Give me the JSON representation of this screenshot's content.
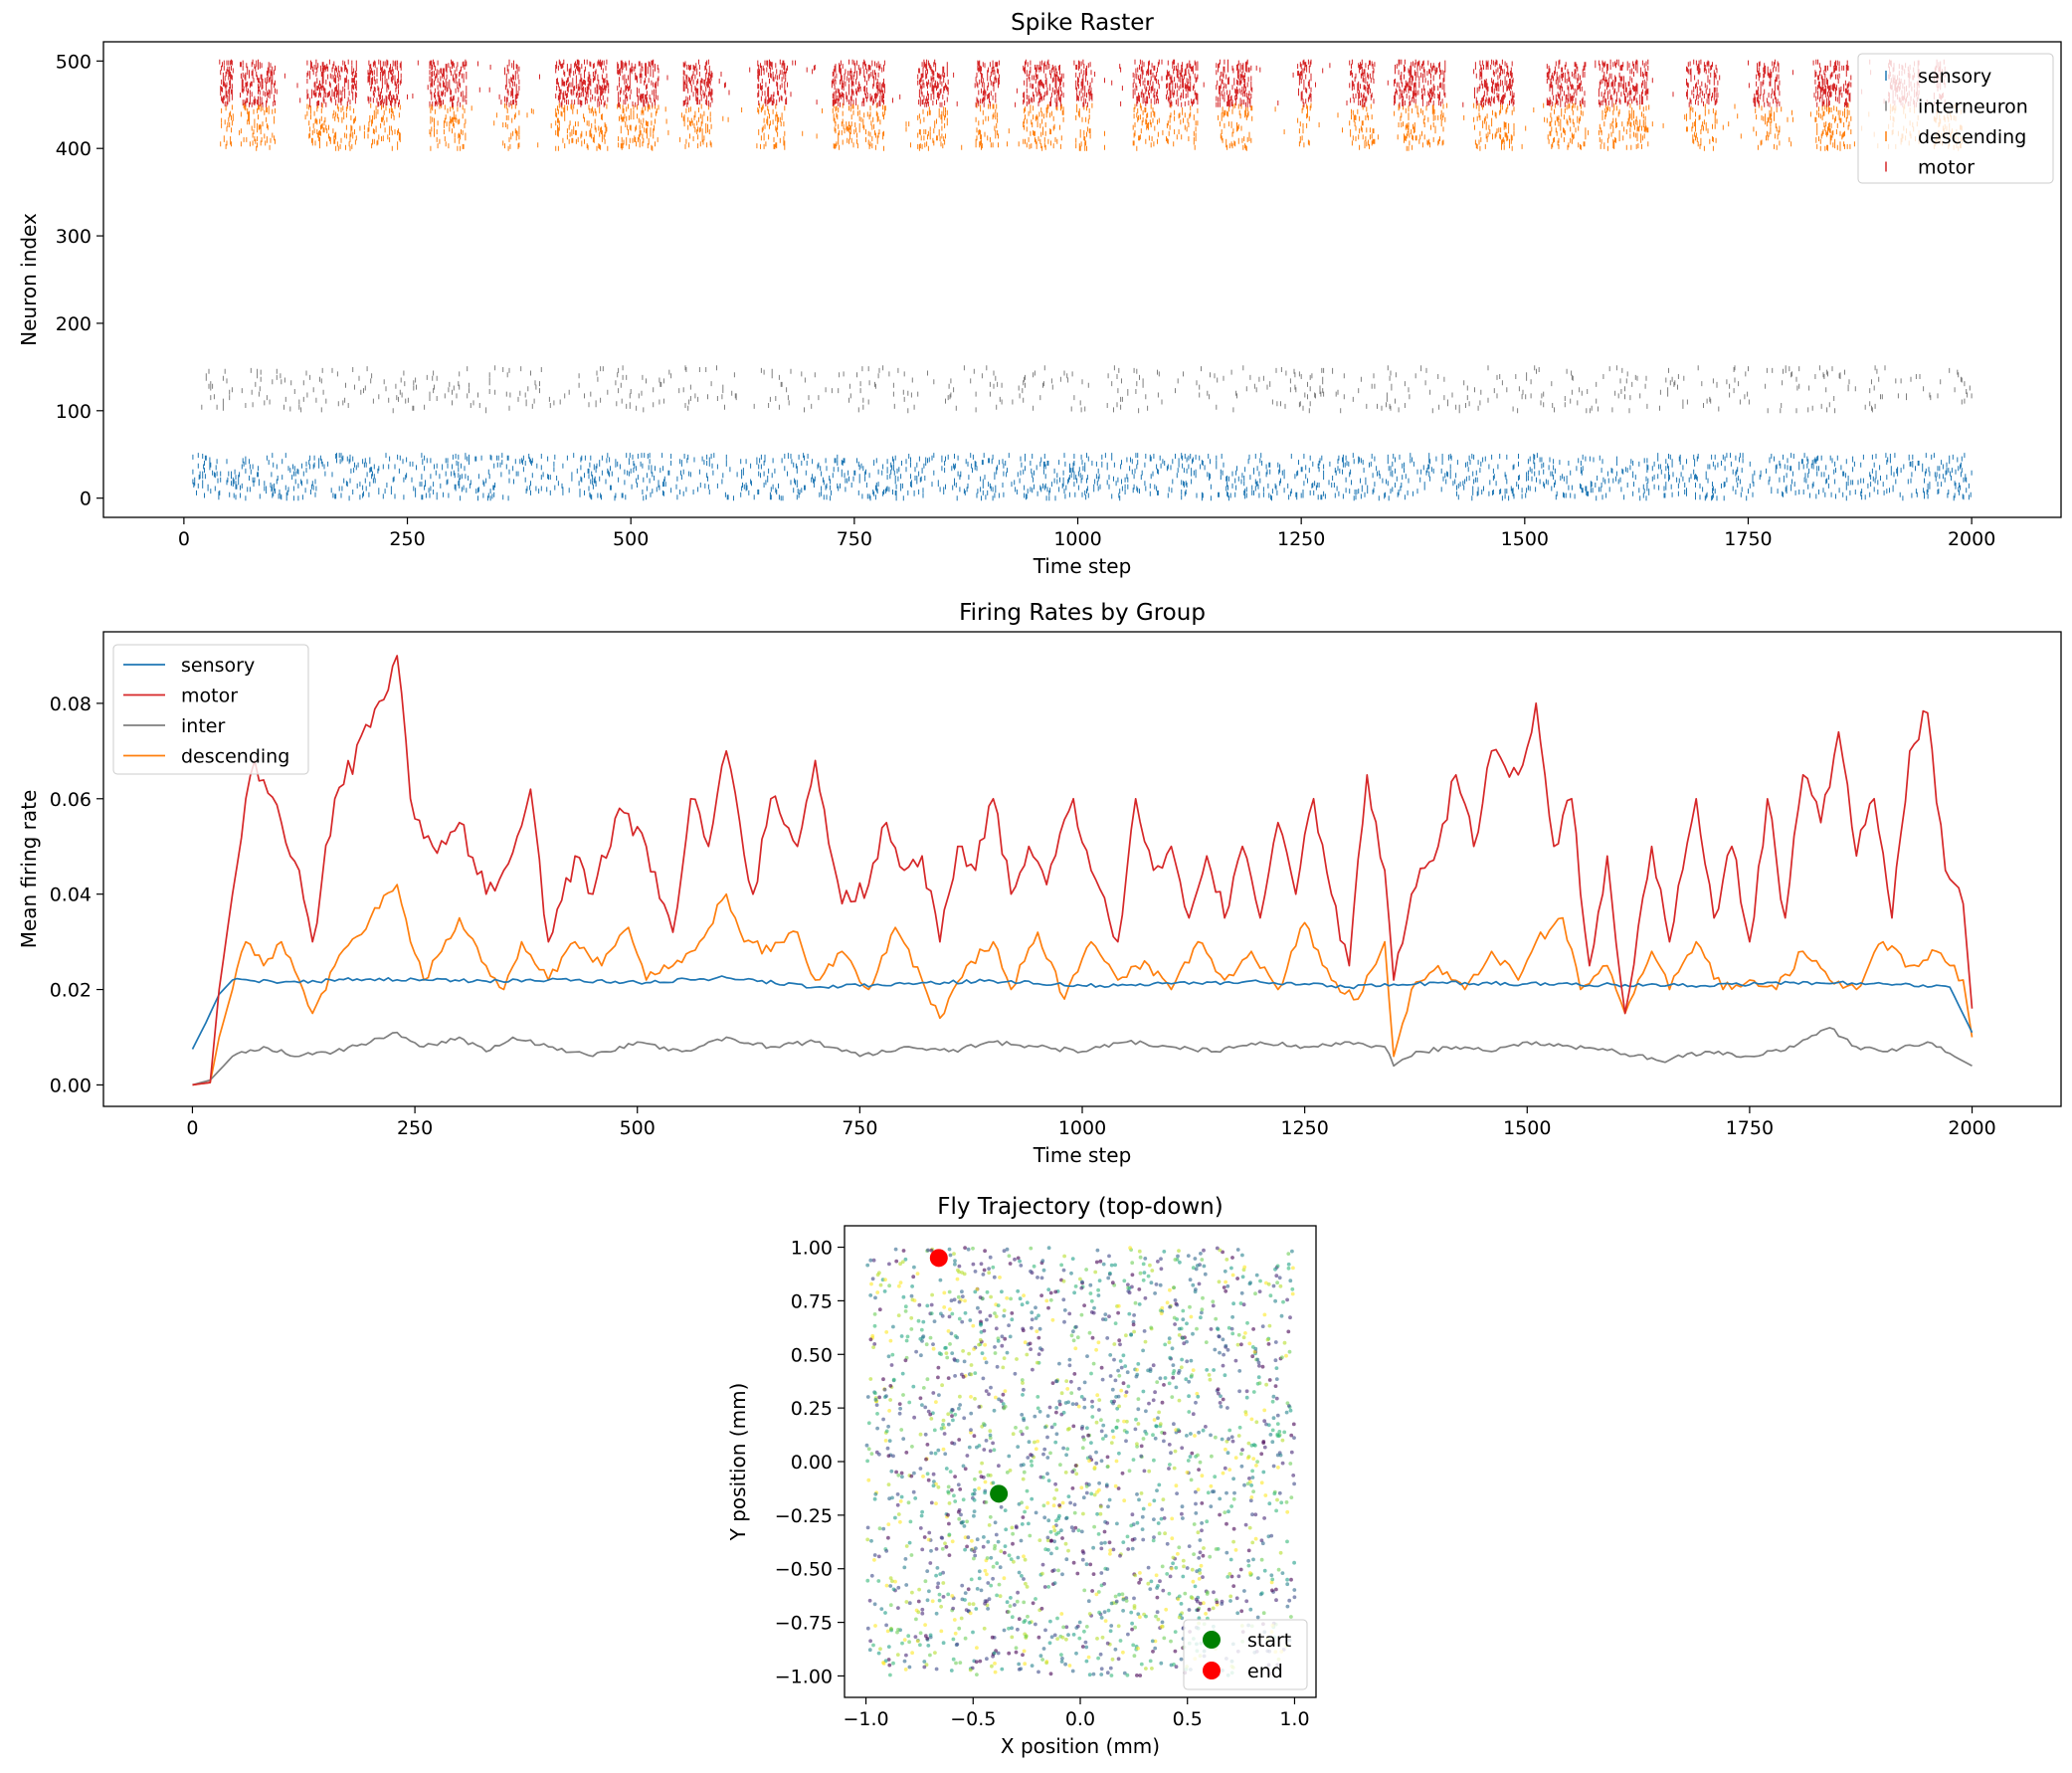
{
  "colors": {
    "sensory": "#1f77b4",
    "interneuron": "#7f7f7f",
    "descending": "#ff7f0e",
    "motor": "#d62728",
    "start": "#008000",
    "end": "#ff0000"
  },
  "chart_data": [
    {
      "type": "scatter",
      "title": "Spike Raster",
      "xlabel": "Time step",
      "ylabel": "Neuron index",
      "xlim": [
        -90,
        2100
      ],
      "ylim": [
        -22,
        522
      ],
      "xticks": [
        0,
        250,
        500,
        750,
        1000,
        1250,
        1500,
        1750,
        2000
      ],
      "yticks": [
        0,
        100,
        200,
        300,
        400,
        500
      ],
      "grid": false,
      "legend_position": "top-right",
      "series": [
        {
          "name": "sensory",
          "color_key": "sensory",
          "neuron_range": [
            0,
            49
          ],
          "time_range": [
            10,
            2000
          ],
          "spike_density": "dense uniform"
        },
        {
          "name": "interneuron",
          "color_key": "interneuron",
          "neuron_range": [
            100,
            149
          ],
          "time_range": [
            20,
            2000
          ],
          "spike_density": "sparse"
        },
        {
          "name": "descending",
          "color_key": "descending",
          "neuron_range": [
            400,
            449
          ],
          "time_range": [
            35,
            1990
          ],
          "spike_density": "bursty"
        },
        {
          "name": "motor",
          "color_key": "motor",
          "neuron_range": [
            450,
            499
          ],
          "time_range": [
            40,
            1970
          ],
          "spike_density": "bursty"
        }
      ]
    },
    {
      "type": "line",
      "title": "Firing Rates by Group",
      "xlabel": "Time step",
      "ylabel": "Mean firing rate",
      "xlim": [
        -100,
        2100
      ],
      "ylim": [
        -0.0045,
        0.095
      ],
      "xticks": [
        0,
        250,
        500,
        750,
        1000,
        1250,
        1500,
        1750,
        2000
      ],
      "yticks": [
        0.0,
        0.02,
        0.04,
        0.06,
        0.08
      ],
      "ytick_labels": [
        "0.00",
        "0.02",
        "0.04",
        "0.06",
        "0.08"
      ],
      "grid": false,
      "legend_position": "top-left",
      "series": [
        {
          "name": "sensory",
          "color_key": "sensory",
          "x": [
            0,
            15,
            30,
            45,
            100,
            200,
            300,
            400,
            500,
            600,
            700,
            800,
            900,
            1000,
            1100,
            1200,
            1300,
            1400,
            1500,
            1600,
            1700,
            1800,
            1900,
            1975,
            2000
          ],
          "y": [
            0.0075,
            0.013,
            0.019,
            0.022,
            0.0215,
            0.0222,
            0.0218,
            0.022,
            0.0215,
            0.0225,
            0.0205,
            0.0212,
            0.0218,
            0.0208,
            0.0212,
            0.0216,
            0.0205,
            0.0214,
            0.0212,
            0.021,
            0.0208,
            0.0215,
            0.0212,
            0.0205,
            0.011
          ]
        },
        {
          "name": "motor",
          "color_key": "motor",
          "x": [
            0,
            20,
            30,
            45,
            60,
            70,
            100,
            120,
            135,
            160,
            200,
            230,
            245,
            270,
            300,
            330,
            350,
            380,
            400,
            430,
            450,
            480,
            510,
            540,
            560,
            580,
            600,
            630,
            650,
            680,
            700,
            730,
            760,
            780,
            800,
            820,
            840,
            860,
            880,
            900,
            920,
            940,
            960,
            990,
            1010,
            1040,
            1060,
            1080,
            1100,
            1120,
            1140,
            1160,
            1180,
            1200,
            1220,
            1240,
            1260,
            1280,
            1300,
            1320,
            1340,
            1350,
            1370,
            1400,
            1420,
            1440,
            1460,
            1490,
            1510,
            1530,
            1550,
            1570,
            1590,
            1610,
            1640,
            1660,
            1690,
            1710,
            1730,
            1750,
            1770,
            1790,
            1810,
            1830,
            1850,
            1870,
            1890,
            1910,
            1930,
            1950,
            1970,
            1990,
            2000
          ],
          "y": [
            0.0,
            0.0005,
            0.02,
            0.04,
            0.06,
            0.068,
            0.055,
            0.045,
            0.03,
            0.06,
            0.075,
            0.09,
            0.06,
            0.05,
            0.055,
            0.04,
            0.045,
            0.062,
            0.03,
            0.048,
            0.04,
            0.058,
            0.05,
            0.032,
            0.06,
            0.05,
            0.07,
            0.04,
            0.06,
            0.05,
            0.068,
            0.038,
            0.042,
            0.055,
            0.045,
            0.048,
            0.03,
            0.05,
            0.045,
            0.06,
            0.04,
            0.05,
            0.042,
            0.06,
            0.045,
            0.03,
            0.06,
            0.045,
            0.05,
            0.035,
            0.048,
            0.035,
            0.05,
            0.035,
            0.055,
            0.04,
            0.06,
            0.04,
            0.025,
            0.065,
            0.045,
            0.022,
            0.04,
            0.05,
            0.065,
            0.05,
            0.07,
            0.065,
            0.08,
            0.05,
            0.06,
            0.025,
            0.048,
            0.015,
            0.05,
            0.03,
            0.06,
            0.035,
            0.05,
            0.03,
            0.06,
            0.035,
            0.065,
            0.055,
            0.074,
            0.048,
            0.06,
            0.035,
            0.07,
            0.078,
            0.045,
            0.038,
            0.016
          ]
        },
        {
          "name": "inter",
          "color_key": "interneuron",
          "x": [
            0,
            20,
            30,
            45,
            80,
            120,
            160,
            200,
            230,
            260,
            300,
            330,
            360,
            400,
            450,
            500,
            550,
            600,
            650,
            700,
            750,
            800,
            850,
            900,
            950,
            1000,
            1050,
            1100,
            1150,
            1200,
            1250,
            1300,
            1340,
            1350,
            1380,
            1420,
            1460,
            1500,
            1550,
            1600,
            1650,
            1700,
            1750,
            1800,
            1840,
            1870,
            1900,
            1950,
            1980,
            2000
          ],
          "y": [
            0.0,
            0.001,
            0.003,
            0.006,
            0.008,
            0.006,
            0.007,
            0.009,
            0.011,
            0.008,
            0.01,
            0.007,
            0.01,
            0.008,
            0.006,
            0.009,
            0.007,
            0.01,
            0.008,
            0.009,
            0.006,
            0.008,
            0.007,
            0.009,
            0.008,
            0.007,
            0.009,
            0.008,
            0.007,
            0.009,
            0.008,
            0.009,
            0.008,
            0.004,
            0.007,
            0.008,
            0.007,
            0.009,
            0.008,
            0.007,
            0.005,
            0.007,
            0.006,
            0.008,
            0.012,
            0.008,
            0.007,
            0.009,
            0.006,
            0.004
          ]
        },
        {
          "name": "descending",
          "color_key": "descending",
          "x": [
            0,
            20,
            30,
            45,
            60,
            80,
            100,
            120,
            135,
            160,
            200,
            230,
            245,
            260,
            280,
            300,
            330,
            350,
            370,
            400,
            430,
            460,
            490,
            510,
            540,
            570,
            600,
            620,
            650,
            680,
            700,
            730,
            760,
            790,
            820,
            840,
            870,
            900,
            920,
            950,
            980,
            1010,
            1040,
            1070,
            1100,
            1130,
            1160,
            1190,
            1220,
            1250,
            1280,
            1310,
            1340,
            1350,
            1370,
            1400,
            1430,
            1460,
            1490,
            1510,
            1540,
            1560,
            1590,
            1610,
            1640,
            1660,
            1690,
            1720,
            1750,
            1780,
            1810,
            1840,
            1870,
            1900,
            1930,
            1960,
            1990,
            2000
          ],
          "y": [
            0.0,
            0.0005,
            0.01,
            0.02,
            0.03,
            0.025,
            0.03,
            0.022,
            0.015,
            0.025,
            0.035,
            0.042,
            0.03,
            0.022,
            0.028,
            0.035,
            0.025,
            0.02,
            0.03,
            0.022,
            0.03,
            0.025,
            0.033,
            0.022,
            0.025,
            0.03,
            0.04,
            0.03,
            0.028,
            0.032,
            0.022,
            0.028,
            0.02,
            0.033,
            0.022,
            0.014,
            0.025,
            0.03,
            0.02,
            0.032,
            0.018,
            0.03,
            0.022,
            0.026,
            0.02,
            0.03,
            0.022,
            0.028,
            0.02,
            0.034,
            0.022,
            0.018,
            0.03,
            0.006,
            0.02,
            0.025,
            0.02,
            0.028,
            0.022,
            0.03,
            0.035,
            0.02,
            0.025,
            0.015,
            0.028,
            0.02,
            0.03,
            0.02,
            0.022,
            0.02,
            0.028,
            0.022,
            0.02,
            0.03,
            0.025,
            0.028,
            0.022,
            0.01
          ]
        }
      ]
    },
    {
      "type": "scatter",
      "title": "Fly Trajectory (top-down)",
      "xlabel": "X position (mm)",
      "ylabel": "Y position (mm)",
      "xlim": [
        -1.1,
        1.1
      ],
      "ylim": [
        -1.1,
        1.1
      ],
      "xticks": [
        -1.0,
        -0.5,
        0.0,
        0.5,
        1.0
      ],
      "xtick_labels": [
        "−1.0",
        "−0.5",
        "0.0",
        "0.5",
        "1.0"
      ],
      "yticks": [
        -1.0,
        -0.75,
        -0.5,
        -0.25,
        0.0,
        0.25,
        0.5,
        0.75,
        1.0
      ],
      "ytick_labels": [
        "−1.00",
        "−0.75",
        "−0.50",
        "−0.25",
        "0.00",
        "0.25",
        "0.50",
        "0.75",
        "1.00"
      ],
      "grid": false,
      "legend_position": "bottom-right",
      "trajectory": {
        "points": 2000,
        "x_range": [
          -1.0,
          1.0
        ],
        "y_range": [
          -1.0,
          1.0
        ],
        "colormap": "viridis",
        "alpha": 0.6
      },
      "markers": [
        {
          "name": "start",
          "color_key": "start",
          "x": -0.38,
          "y": -0.15
        },
        {
          "name": "end",
          "color_key": "end",
          "x": -0.66,
          "y": 0.95
        }
      ]
    }
  ]
}
